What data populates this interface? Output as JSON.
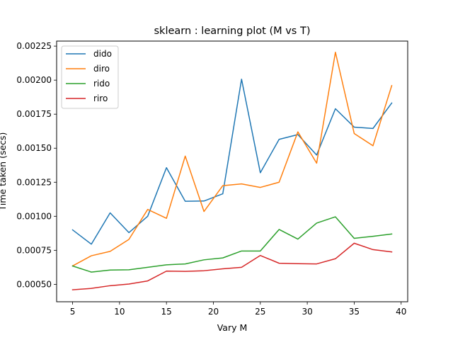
{
  "chart_data": {
    "type": "line",
    "title": "sklearn : learning plot (M vs T)",
    "xlabel": "Vary M",
    "ylabel": "Time taken (secs)",
    "xlim": [
      3.3,
      40.7
    ],
    "ylim": [
      0.000372,
      0.002287
    ],
    "xticks": [
      5,
      10,
      15,
      20,
      25,
      30,
      35,
      40
    ],
    "yticks": [
      0.0005,
      0.00075,
      0.001,
      0.00125,
      0.0015,
      0.00175,
      0.002,
      0.00225
    ],
    "ytick_labels": [
      "0.00050",
      "0.00075",
      "0.00100",
      "0.00125",
      "0.00150",
      "0.00175",
      "0.00200",
      "0.00225"
    ],
    "grid": false,
    "legend": "top-left",
    "x": [
      5,
      7,
      9,
      11,
      13,
      15,
      17,
      19,
      21,
      23,
      25,
      27,
      29,
      31,
      33,
      35,
      37,
      39
    ],
    "series": [
      {
        "name": "dido",
        "color": "#1f77b4",
        "values": [
          0.0009,
          0.000795,
          0.001025,
          0.00088,
          0.001,
          0.001357,
          0.00111,
          0.001112,
          0.001165,
          0.002007,
          0.00132,
          0.001565,
          0.0016,
          0.00145,
          0.00179,
          0.001655,
          0.001645,
          0.001832
        ]
      },
      {
        "name": "diro",
        "color": "#ff7f0e",
        "values": [
          0.000635,
          0.00071,
          0.000742,
          0.00083,
          0.00105,
          0.000985,
          0.001442,
          0.001035,
          0.001225,
          0.001238,
          0.001212,
          0.00125,
          0.00162,
          0.00139,
          0.002205,
          0.001608,
          0.001518,
          0.00196
        ]
      },
      {
        "name": "rido",
        "color": "#2ca02c",
        "values": [
          0.000635,
          0.00059,
          0.000605,
          0.000607,
          0.000625,
          0.000643,
          0.00065,
          0.00068,
          0.000694,
          0.000745,
          0.000745,
          0.000903,
          0.000832,
          0.00095,
          0.000996,
          0.000838,
          0.000853,
          0.00087
        ]
      },
      {
        "name": "riro",
        "color": "#d62728",
        "values": [
          0.00046,
          0.00047,
          0.00049,
          0.000502,
          0.000525,
          0.000597,
          0.000595,
          0.0006,
          0.000614,
          0.000625,
          0.000712,
          0.000655,
          0.000652,
          0.00065,
          0.000688,
          0.000802,
          0.000755,
          0.000738
        ]
      }
    ]
  }
}
